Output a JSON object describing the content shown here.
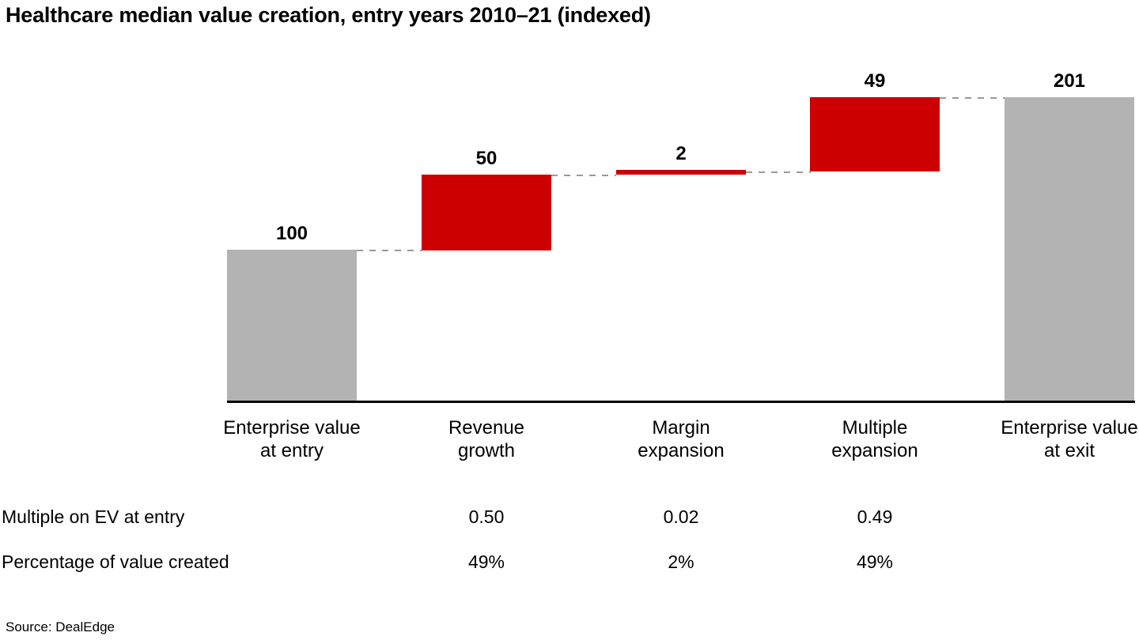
{
  "title": "Healthcare median value creation, entry years 2010–21 (indexed)",
  "source": "Source: DealEdge",
  "colors": {
    "step_bar": "#cc0000",
    "total_bar": "#b3b3b3",
    "axis": "#000000",
    "connector": "#999999",
    "text": "#000000"
  },
  "chart_data": {
    "type": "bar",
    "subtype": "waterfall",
    "title": "Healthcare median value creation, entry years 2010–21 (indexed)",
    "categories": [
      "Enterprise value\nat entry",
      "Revenue\ngrowth",
      "Margin\nexpansion",
      "Multiple\nexpansion",
      "Enterprise value\nat exit"
    ],
    "values": [
      100,
      50,
      2,
      49,
      201
    ],
    "bars": [
      {
        "label": "Enterprise value\nat entry",
        "value": 100,
        "display": "100",
        "start": 0,
        "end": 100,
        "role": "total"
      },
      {
        "label": "Revenue\ngrowth",
        "value": 50,
        "display": "50",
        "start": 100,
        "end": 150,
        "role": "increase"
      },
      {
        "label": "Margin\nexpansion",
        "value": 2,
        "display": "2",
        "start": 150,
        "end": 152,
        "role": "increase"
      },
      {
        "label": "Multiple\nexpansion",
        "value": 49,
        "display": "49",
        "start": 152,
        "end": 201,
        "role": "increase"
      },
      {
        "label": "Enterprise value\nat exit",
        "value": 201,
        "display": "201",
        "start": 0,
        "end": 201,
        "role": "total"
      }
    ],
    "connectors": [
      {
        "from_bar": 0,
        "to_bar": 1,
        "level": 100
      },
      {
        "from_bar": 1,
        "to_bar": 2,
        "level": 150
      },
      {
        "from_bar": 2,
        "to_bar": 3,
        "level": 152
      },
      {
        "from_bar": 3,
        "to_bar": 4,
        "level": 201
      }
    ],
    "ylim": [
      0,
      210
    ],
    "xlabel": "",
    "ylabel": "",
    "grid": false,
    "legend": false,
    "y_axis_visible": false
  },
  "table": {
    "rows": [
      {
        "label": "Multiple on EV at entry",
        "values": [
          "0.50",
          "0.02",
          "0.49"
        ],
        "value_columns": [
          1,
          2,
          3
        ]
      },
      {
        "label": "Percentage of value created",
        "values": [
          "49%",
          "2%",
          "49%"
        ],
        "value_columns": [
          1,
          2,
          3
        ]
      }
    ]
  }
}
